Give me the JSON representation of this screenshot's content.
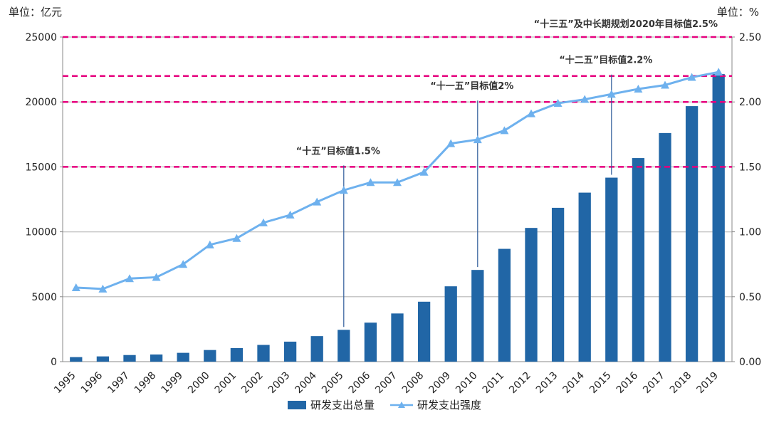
{
  "units": {
    "left": "单位：亿元",
    "right": "单位：%"
  },
  "colors": {
    "bar": "#2166A6",
    "line": "#6EB1EE",
    "target": "#E6007E",
    "grid": "#c8c8c8",
    "callout": "#2F5C9A"
  },
  "chart_data": {
    "type": "bar+line",
    "categories": [
      "1995",
      "1996",
      "1997",
      "1998",
      "1999",
      "2000",
      "2001",
      "2002",
      "2003",
      "2004",
      "2005",
      "2006",
      "2007",
      "2008",
      "2009",
      "2010",
      "2011",
      "2012",
      "2013",
      "2014",
      "2015",
      "2016",
      "2017",
      "2018",
      "2019"
    ],
    "series": [
      {
        "name": "研发支出总量",
        "type": "bar",
        "axis": "left",
        "values": [
          349,
          404,
          509,
          551,
          679,
          896,
          1043,
          1288,
          1540,
          1966,
          2450,
          3003,
          3710,
          4616,
          5802,
          7063,
          8687,
          10298,
          11847,
          13016,
          14170,
          15677,
          17606,
          19678,
          22144
        ]
      },
      {
        "name": "研发支出强度",
        "type": "line",
        "axis": "right",
        "values": [
          0.57,
          0.56,
          0.64,
          0.65,
          0.75,
          0.9,
          0.95,
          1.07,
          1.13,
          1.23,
          1.32,
          1.38,
          1.38,
          1.46,
          1.68,
          1.71,
          1.78,
          1.91,
          1.99,
          2.02,
          2.06,
          2.1,
          2.13,
          2.19,
          2.23
        ]
      }
    ],
    "y_left": {
      "min": 0,
      "max": 25000,
      "ticks": [
        "0",
        "5000",
        "10000",
        "15000",
        "20000",
        "25000"
      ]
    },
    "y_right": {
      "min": 0,
      "max": 2.5,
      "ticks": [
        "0.00",
        "0.50",
        "1.00",
        "1.50",
        "2.00",
        "2.50"
      ]
    },
    "grid": true,
    "legend_position": "bottom",
    "targets": [
      {
        "value": 1.5,
        "label": "“十五”目标值1.5%",
        "year": "2005"
      },
      {
        "value": 2.0,
        "label": "“十一五”目标值2%",
        "year": "2010"
      },
      {
        "value": 2.2,
        "label": "“十二五”目标值2.2%",
        "year": "2015"
      },
      {
        "value": 2.5,
        "label": "“十三五”及中长期规划2020年目标值2.5%",
        "year": ""
      }
    ]
  }
}
